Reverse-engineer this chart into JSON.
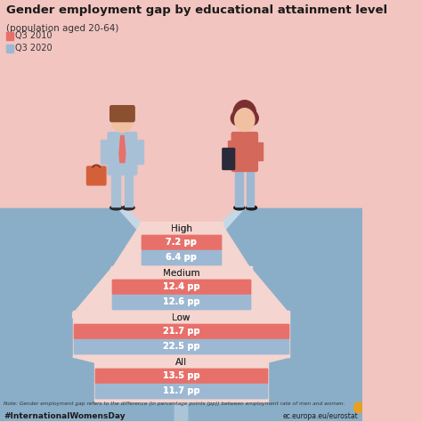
{
  "title": "Gender employment gap by educational attainment level",
  "subtitle": "(population aged 20-64)",
  "legend": [
    "Q3 2010",
    "Q3 2020"
  ],
  "categories": [
    "High",
    "Medium",
    "Low",
    "All"
  ],
  "q3_2010": [
    7.2,
    12.4,
    21.7,
    13.5
  ],
  "q3_2020": [
    6.4,
    12.6,
    22.5,
    11.7
  ],
  "bar_color_2010": "#E8706A",
  "bar_color_2020": "#9DB8D2",
  "bg_top": "#F2C5C0",
  "bg_bottom": "#ACC4D8",
  "cliff_color": "#8AAEC8",
  "stair_bg": "#F5D5CF",
  "note": "Note: Gender employment gap refers to the difference (in percentage points (pp)) between employment rate of men and women.",
  "hashtag": "#InternationalWomensDay",
  "website": "ec.europa.eu/eurostat",
  "man_body": "#A8C0D6",
  "man_tie": "#E8706A",
  "man_brief": "#D4603A",
  "woman_body": "#D4685A",
  "woman_legs": "#9DB8D2",
  "skin": "#F0C0A0",
  "hair_woman": "#7A3030"
}
